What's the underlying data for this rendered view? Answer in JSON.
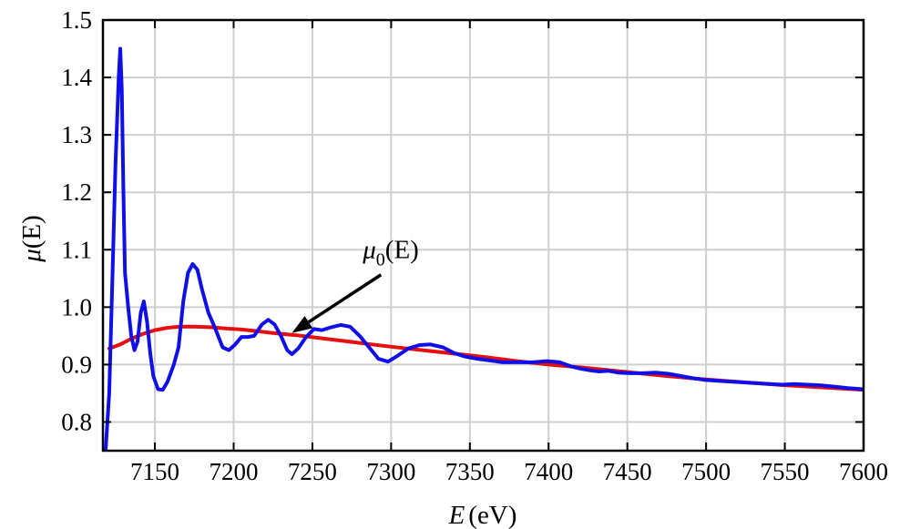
{
  "chart_data": {
    "type": "line",
    "xlabel": {
      "var": "E",
      "unit": "(eV)"
    },
    "ylabel": {
      "var": "μ",
      "arg": "(E)"
    },
    "xlim": [
      7117,
      7600
    ],
    "ylim": [
      0.75,
      1.5
    ],
    "x_ticks": [
      7150,
      7200,
      7250,
      7300,
      7350,
      7400,
      7450,
      7500,
      7550,
      7600
    ],
    "x_tick_labels": [
      "7150",
      "7200",
      "7250",
      "7300",
      "7350",
      "7400",
      "7450",
      "7500",
      "7550",
      "7600"
    ],
    "y_ticks": [
      0.8,
      0.9,
      1.0,
      1.1,
      1.2,
      1.3,
      1.4,
      1.5
    ],
    "y_tick_labels": [
      "0.8",
      "0.9",
      "1.0",
      "1.1",
      "1.2",
      "1.3",
      "1.4",
      "1.5"
    ],
    "grid": true,
    "annotation": {
      "var": "μ",
      "sub": "0",
      "arg": "(E)",
      "arrow_to": [
        7237,
        0.955
      ],
      "text_at": [
        7282,
        1.085
      ]
    },
    "series": [
      {
        "name": "μ(E)",
        "color": "#1010e6",
        "points": [
          [
            7118,
            0.72
          ],
          [
            7121,
            0.85
          ],
          [
            7123,
            1.05
          ],
          [
            7125,
            1.25
          ],
          [
            7127,
            1.4
          ],
          [
            7128,
            1.45
          ],
          [
            7129,
            1.38
          ],
          [
            7130,
            1.2
          ],
          [
            7131,
            1.06
          ],
          [
            7133,
            1.0
          ],
          [
            7135,
            0.95
          ],
          [
            7137,
            0.925
          ],
          [
            7139,
            0.94
          ],
          [
            7141,
            0.99
          ],
          [
            7143,
            1.01
          ],
          [
            7145,
            0.975
          ],
          [
            7147,
            0.92
          ],
          [
            7149,
            0.88
          ],
          [
            7152,
            0.857
          ],
          [
            7155,
            0.856
          ],
          [
            7158,
            0.87
          ],
          [
            7162,
            0.9
          ],
          [
            7165,
            0.93
          ],
          [
            7168,
            1.01
          ],
          [
            7171,
            1.06
          ],
          [
            7174,
            1.075
          ],
          [
            7177,
            1.065
          ],
          [
            7180,
            1.03
          ],
          [
            7184,
            0.99
          ],
          [
            7188,
            0.965
          ],
          [
            7193,
            0.93
          ],
          [
            7197,
            0.925
          ],
          [
            7201,
            0.935
          ],
          [
            7205,
            0.948
          ],
          [
            7209,
            0.948
          ],
          [
            7213,
            0.95
          ],
          [
            7218,
            0.97
          ],
          [
            7222,
            0.978
          ],
          [
            7226,
            0.97
          ],
          [
            7230,
            0.95
          ],
          [
            7234,
            0.925
          ],
          [
            7237,
            0.918
          ],
          [
            7241,
            0.928
          ],
          [
            7246,
            0.948
          ],
          [
            7251,
            0.962
          ],
          [
            7256,
            0.96
          ],
          [
            7262,
            0.965
          ],
          [
            7268,
            0.969
          ],
          [
            7274,
            0.966
          ],
          [
            7280,
            0.95
          ],
          [
            7286,
            0.93
          ],
          [
            7292,
            0.91
          ],
          [
            7298,
            0.905
          ],
          [
            7304,
            0.915
          ],
          [
            7311,
            0.928
          ],
          [
            7318,
            0.934
          ],
          [
            7325,
            0.935
          ],
          [
            7333,
            0.93
          ],
          [
            7340,
            0.92
          ],
          [
            7347,
            0.914
          ],
          [
            7355,
            0.91
          ],
          [
            7363,
            0.907
          ],
          [
            7371,
            0.904
          ],
          [
            7380,
            0.904
          ],
          [
            7390,
            0.904
          ],
          [
            7399,
            0.906
          ],
          [
            7407,
            0.904
          ],
          [
            7414,
            0.897
          ],
          [
            7420,
            0.893
          ],
          [
            7426,
            0.89
          ],
          [
            7432,
            0.888
          ],
          [
            7438,
            0.889
          ],
          [
            7444,
            0.886
          ],
          [
            7452,
            0.885
          ],
          [
            7460,
            0.885
          ],
          [
            7468,
            0.886
          ],
          [
            7476,
            0.884
          ],
          [
            7484,
            0.88
          ],
          [
            7492,
            0.876
          ],
          [
            7500,
            0.873
          ],
          [
            7512,
            0.871
          ],
          [
            7524,
            0.869
          ],
          [
            7536,
            0.867
          ],
          [
            7548,
            0.865
          ],
          [
            7556,
            0.866
          ],
          [
            7564,
            0.865
          ],
          [
            7572,
            0.864
          ],
          [
            7580,
            0.862
          ],
          [
            7590,
            0.859
          ],
          [
            7600,
            0.857
          ]
        ]
      },
      {
        "name": "μ0(E)",
        "color": "#e60e0e",
        "points": [
          [
            7121,
            0.928
          ],
          [
            7128,
            0.935
          ],
          [
            7135,
            0.945
          ],
          [
            7142,
            0.953
          ],
          [
            7150,
            0.96
          ],
          [
            7158,
            0.964
          ],
          [
            7166,
            0.966
          ],
          [
            7175,
            0.966
          ],
          [
            7185,
            0.965
          ],
          [
            7195,
            0.963
          ],
          [
            7205,
            0.961
          ],
          [
            7215,
            0.958
          ],
          [
            7225,
            0.955
          ],
          [
            7240,
            0.951
          ],
          [
            7255,
            0.946
          ],
          [
            7270,
            0.941
          ],
          [
            7285,
            0.936
          ],
          [
            7300,
            0.931
          ],
          [
            7320,
            0.925
          ],
          [
            7340,
            0.919
          ],
          [
            7360,
            0.913
          ],
          [
            7380,
            0.906
          ],
          [
            7400,
            0.9
          ],
          [
            7425,
            0.894
          ],
          [
            7450,
            0.887
          ],
          [
            7475,
            0.88
          ],
          [
            7500,
            0.874
          ],
          [
            7525,
            0.869
          ],
          [
            7550,
            0.864
          ],
          [
            7575,
            0.86
          ],
          [
            7600,
            0.856
          ]
        ]
      }
    ]
  }
}
